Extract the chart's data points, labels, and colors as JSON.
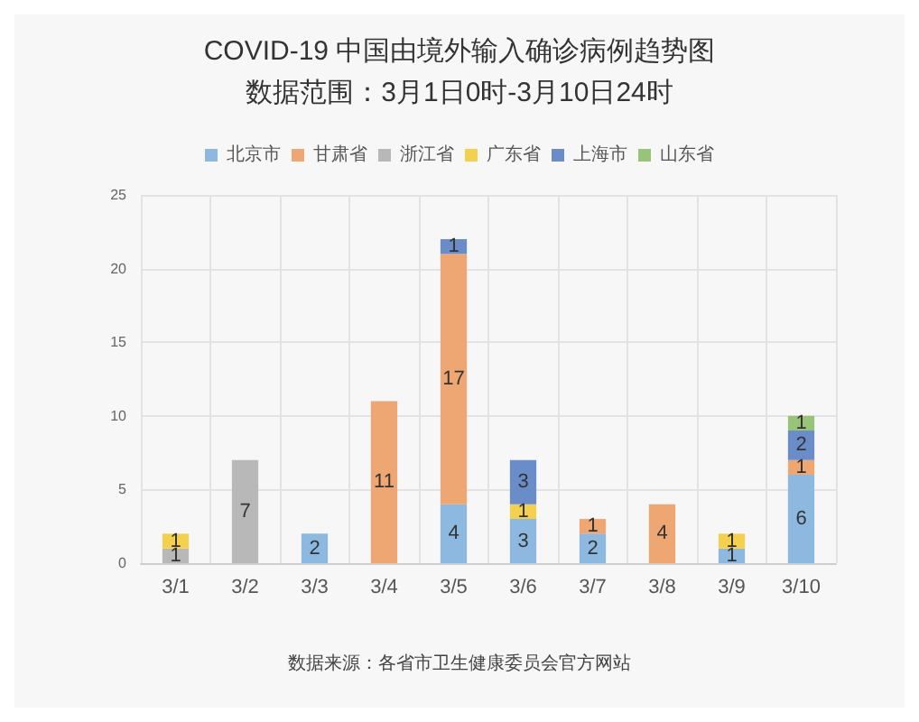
{
  "chart_data": {
    "type": "bar",
    "title": "COVID-19 中国由境外输入确诊病例趋势图",
    "subtitle": "数据范围：3月1日0时-3月10日24时",
    "categories": [
      "3/1",
      "3/2",
      "3/3",
      "3/4",
      "3/5",
      "3/6",
      "3/7",
      "3/8",
      "3/9",
      "3/10"
    ],
    "stacked": true,
    "series": [
      {
        "name": "北京市",
        "color": "#8db8e0",
        "values": [
          null,
          null,
          2,
          null,
          4,
          3,
          2,
          null,
          1,
          6
        ]
      },
      {
        "name": "甘肃省",
        "color": "#eea672",
        "values": [
          null,
          null,
          null,
          11,
          17,
          null,
          1,
          4,
          null,
          1
        ]
      },
      {
        "name": "浙江省",
        "color": "#b8b8b8",
        "values": [
          1,
          7,
          null,
          null,
          null,
          null,
          null,
          null,
          null,
          null
        ]
      },
      {
        "name": "广东省",
        "color": "#f3d04e",
        "values": [
          1,
          null,
          null,
          null,
          null,
          1,
          null,
          null,
          1,
          null
        ]
      },
      {
        "name": "上海市",
        "color": "#6a8cc8",
        "values": [
          null,
          null,
          null,
          null,
          1,
          3,
          null,
          null,
          null,
          2
        ]
      },
      {
        "name": "山东省",
        "color": "#98c47a",
        "values": [
          null,
          null,
          null,
          null,
          null,
          null,
          null,
          null,
          null,
          1
        ]
      }
    ],
    "ylim": [
      0,
      25
    ],
    "yticks": [
      0,
      5,
      10,
      15,
      20,
      25
    ],
    "grid": true,
    "legend": "top",
    "data_labels": true,
    "annotations": [
      "数据来源：各省市卫生健康委员会官方网站"
    ]
  }
}
